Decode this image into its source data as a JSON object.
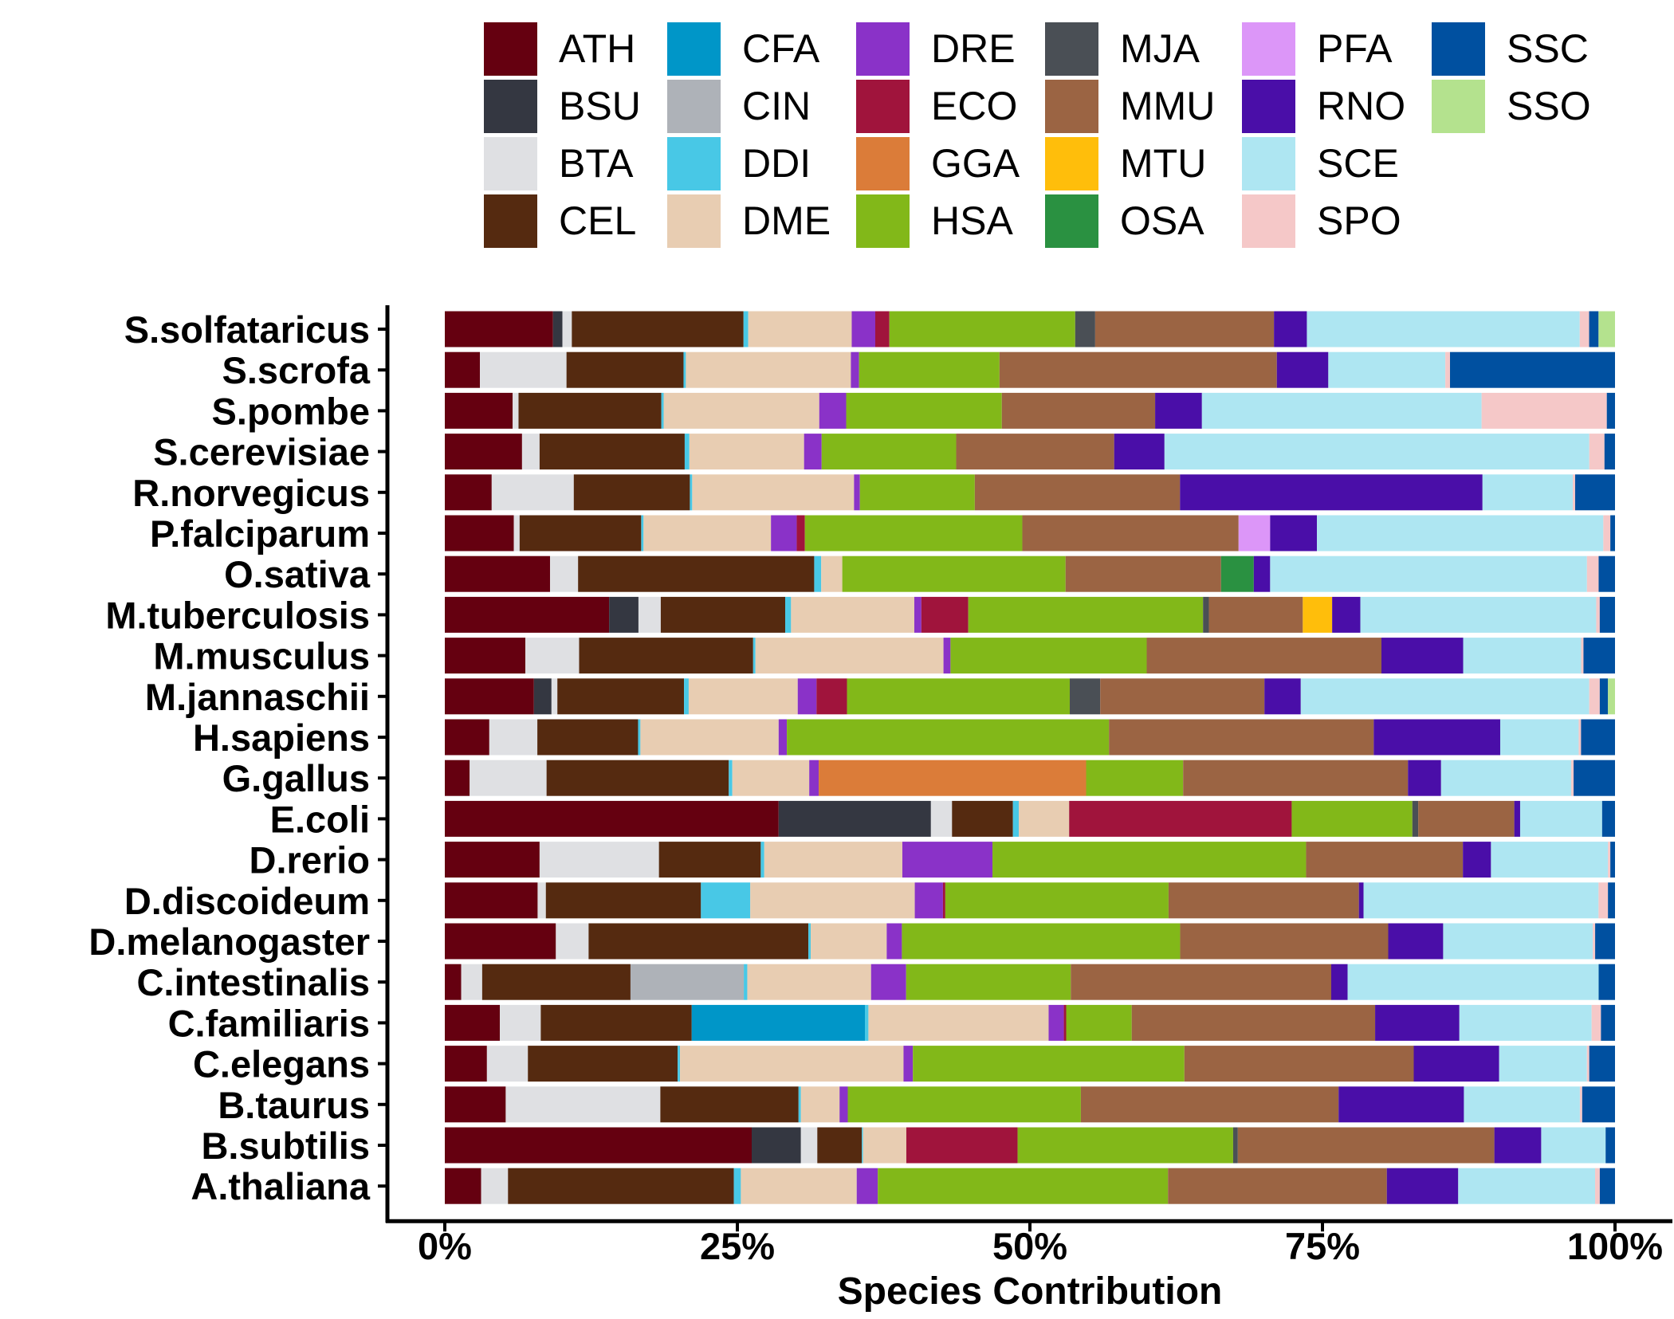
{
  "chart_data": {
    "type": "bar",
    "orientation": "horizontal",
    "stacked": true,
    "normalized": true,
    "xlabel": "Species Contribution",
    "ylabel": "",
    "xlim": [
      0,
      100
    ],
    "x_ticks": [
      "0%",
      "25%",
      "50%",
      "75%",
      "100%"
    ],
    "legend_position": "top",
    "grid": false,
    "categories": [
      "S.solfataricus",
      "S.scrofa",
      "S.pombe",
      "S.cerevisiae",
      "R.norvegicus",
      "P.falciparum",
      "O.sativa",
      "M.tuberculosis",
      "M.musculus",
      "M.jannaschii",
      "H.sapiens",
      "G.gallus",
      "E.coli",
      "D.rerio",
      "D.discoideum",
      "D.melanogaster",
      "C.intestinalis",
      "C.familiaris",
      "C.elegans",
      "B.taurus",
      "B.subtilis",
      "A.thaliana"
    ],
    "series": [
      {
        "name": "ATH",
        "color": "#650010",
        "values": [
          9.2,
          3.0,
          5.8,
          6.6,
          4.0,
          5.9,
          9.0,
          14.0,
          6.9,
          7.6,
          3.8,
          2.1,
          28.5,
          8.1,
          7.9,
          9.5,
          1.4,
          4.7,
          3.6,
          5.2,
          26.2,
          3.1
        ]
      },
      {
        "name": "BSU",
        "color": "#343741",
        "values": [
          0.8,
          0,
          0,
          0,
          0,
          0,
          0,
          2.5,
          0,
          1.5,
          0,
          0,
          13.0,
          0,
          0,
          0,
          0,
          0,
          0,
          0,
          4.2,
          0
        ]
      },
      {
        "name": "BTA",
        "color": "#dfe0e3",
        "values": [
          0.8,
          7.4,
          0.5,
          1.5,
          7.0,
          0.5,
          2.4,
          1.9,
          4.6,
          0.5,
          4.1,
          6.5,
          1.8,
          10.2,
          0.7,
          2.8,
          1.8,
          3.5,
          3.5,
          13.2,
          1.4,
          2.3
        ]
      },
      {
        "name": "CEL",
        "color": "#552a10",
        "values": [
          14.6,
          10.0,
          12.2,
          12.4,
          9.9,
          10.4,
          20.2,
          10.6,
          14.9,
          10.8,
          8.6,
          15.4,
          5.2,
          8.7,
          13.2,
          18.8,
          12.7,
          12.9,
          12.8,
          11.8,
          3.8,
          19.3
        ]
      },
      {
        "name": "CFA",
        "color": "#0096c8",
        "values": [
          0,
          0,
          0,
          0,
          0,
          0,
          0,
          0,
          0,
          0,
          0,
          0,
          0,
          0,
          0,
          0,
          0,
          14.8,
          0,
          0,
          0,
          0
        ]
      },
      {
        "name": "CIN",
        "color": "#aeb2b8",
        "values": [
          0,
          0,
          0,
          0,
          0,
          0,
          0,
          0,
          0,
          0,
          0,
          0,
          0,
          0,
          0,
          0,
          9.7,
          0,
          0,
          0,
          0,
          0
        ]
      },
      {
        "name": "DDI",
        "color": "#48c8e6",
        "values": [
          0.4,
          0.2,
          0.2,
          0.4,
          0.2,
          0.2,
          0.6,
          0.5,
          0.2,
          0.4,
          0.2,
          0.3,
          0.5,
          0.3,
          4.2,
          0.2,
          0.3,
          0.3,
          0.2,
          0.2,
          0.1,
          0.6
        ]
      },
      {
        "name": "DME",
        "color": "#e8cdb2",
        "values": [
          8.8,
          14.1,
          13.3,
          9.8,
          13.8,
          10.9,
          1.8,
          10.5,
          16.1,
          9.3,
          11.8,
          6.5,
          4.3,
          11.8,
          14.0,
          6.5,
          10.6,
          15.4,
          19.1,
          3.3,
          3.7,
          9.9
        ]
      },
      {
        "name": "DRE",
        "color": "#8a32c8",
        "values": [
          2.0,
          0.7,
          2.3,
          1.5,
          0.5,
          2.2,
          0,
          0.6,
          0.6,
          1.6,
          0.7,
          0.8,
          0,
          7.7,
          2.4,
          1.3,
          3.0,
          1.3,
          0.8,
          0.7,
          0,
          1.8
        ]
      },
      {
        "name": "ECO",
        "color": "#a0143c",
        "values": [
          1.2,
          0,
          0,
          0,
          0,
          0.7,
          0,
          4.0,
          0,
          2.6,
          0,
          0,
          19.0,
          0,
          0.2,
          0,
          0,
          0.2,
          0,
          0,
          9.5,
          0
        ]
      },
      {
        "name": "GGA",
        "color": "#db7c39",
        "values": [
          0,
          0,
          0,
          0,
          0,
          0,
          0,
          0,
          0,
          0,
          0,
          22.6,
          0,
          0,
          0,
          0,
          0,
          0,
          0,
          0,
          0,
          0
        ]
      },
      {
        "name": "HSA",
        "color": "#82b819",
        "values": [
          15.8,
          12.0,
          13.3,
          11.5,
          9.8,
          18.6,
          19.1,
          20.0,
          16.8,
          19.0,
          27.5,
          8.2,
          10.3,
          26.8,
          19.0,
          23.8,
          14.1,
          5.6,
          23.2,
          19.9,
          18.4,
          24.8
        ]
      },
      {
        "name": "MJA",
        "color": "#4a4f55",
        "values": [
          1.7,
          0,
          0,
          0,
          0,
          0,
          0,
          0.5,
          0,
          2.6,
          0,
          0,
          0.5,
          0,
          0,
          0,
          0,
          0,
          0,
          0,
          0.4,
          0
        ]
      },
      {
        "name": "MMU",
        "color": "#9b6443",
        "values": [
          15.2,
          23.7,
          13.1,
          13.5,
          17.5,
          18.5,
          13.3,
          8.0,
          20.1,
          14.0,
          22.6,
          19.0,
          8.2,
          13.4,
          16.2,
          17.8,
          22.3,
          20.8,
          19.6,
          22.0,
          21.9,
          18.7
        ]
      },
      {
        "name": "MTU",
        "color": "#ffbe0b",
        "values": [
          0,
          0,
          0,
          0,
          0,
          0,
          0,
          2.5,
          0,
          0,
          0,
          0,
          0,
          0,
          0,
          0,
          0,
          0,
          0,
          0,
          0,
          0
        ]
      },
      {
        "name": "OSA",
        "color": "#2a9141",
        "values": [
          0,
          0,
          0,
          0,
          0,
          0,
          2.8,
          0,
          0,
          0,
          0,
          0,
          0,
          0,
          0,
          0,
          0,
          0,
          0,
          0,
          0,
          0
        ]
      },
      {
        "name": "PFA",
        "color": "#dc96f8",
        "values": [
          0,
          0,
          0,
          0,
          0,
          2.7,
          0,
          0,
          0,
          0,
          0,
          0,
          0,
          0,
          0,
          0,
          0,
          0,
          0,
          0,
          0,
          0
        ]
      },
      {
        "name": "RNO",
        "color": "#4a0ea8",
        "values": [
          2.8,
          4.4,
          4.0,
          4.3,
          25.8,
          4.0,
          1.4,
          2.4,
          7.0,
          3.1,
          10.8,
          2.8,
          0.5,
          2.4,
          0.4,
          4.7,
          1.4,
          7.2,
          7.3,
          10.7,
          4.0,
          6.1
        ]
      },
      {
        "name": "SCE",
        "color": "#aee6f2",
        "values": [
          23.2,
          10.0,
          23.9,
          36.3,
          7.7,
          24.5,
          27.1,
          20.1,
          10.1,
          24.6,
          6.7,
          11.0,
          7.0,
          10.0,
          20.0,
          12.8,
          21.5,
          11.3,
          7.5,
          9.9,
          5.5,
          11.7
        ]
      },
      {
        "name": "SPO",
        "color": "#f5c8c8",
        "values": [
          0.8,
          0.4,
          10.7,
          1.3,
          0.2,
          0.6,
          1.0,
          0.3,
          0.2,
          0.9,
          0.2,
          0.2,
          0,
          0.2,
          0.8,
          0.2,
          0,
          0.8,
          0.2,
          0.2,
          0,
          0.4
        ]
      },
      {
        "name": "SSC",
        "color": "#0050a0",
        "values": [
          0.8,
          14.1,
          0.7,
          0.9,
          3.4,
          0.4,
          1.4,
          1.3,
          2.7,
          0.7,
          2.9,
          3.5,
          1.1,
          0.4,
          0.6,
          1.7,
          1.4,
          1.2,
          2.2,
          2.8,
          0.8,
          1.3
        ]
      },
      {
        "name": "SSO",
        "color": "#b4e28e",
        "values": [
          1.4,
          0,
          0,
          0,
          0,
          0,
          0,
          0,
          0,
          0.6,
          0,
          0,
          0,
          0,
          0,
          0,
          0,
          0,
          0,
          0,
          0,
          0
        ]
      }
    ]
  }
}
